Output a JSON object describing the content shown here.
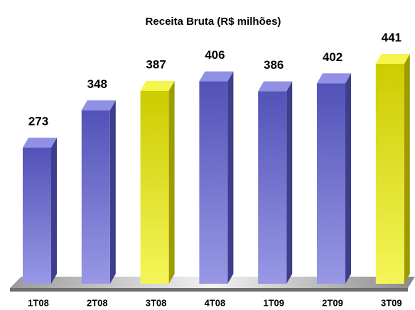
{
  "chart_data": {
    "type": "bar3d",
    "title": "Receita Bruta (R$ milhões)",
    "categories": [
      "1T08",
      "2T08",
      "3T08",
      "4T08",
      "1T09",
      "2T09",
      "3T09"
    ],
    "values": [
      273,
      348,
      387,
      406,
      386,
      402,
      441
    ],
    "colors": [
      "#6060d8",
      "#6060d8",
      "#f0f000",
      "#6060d8",
      "#6060d8",
      "#6060d8",
      "#f0f000"
    ]
  }
}
